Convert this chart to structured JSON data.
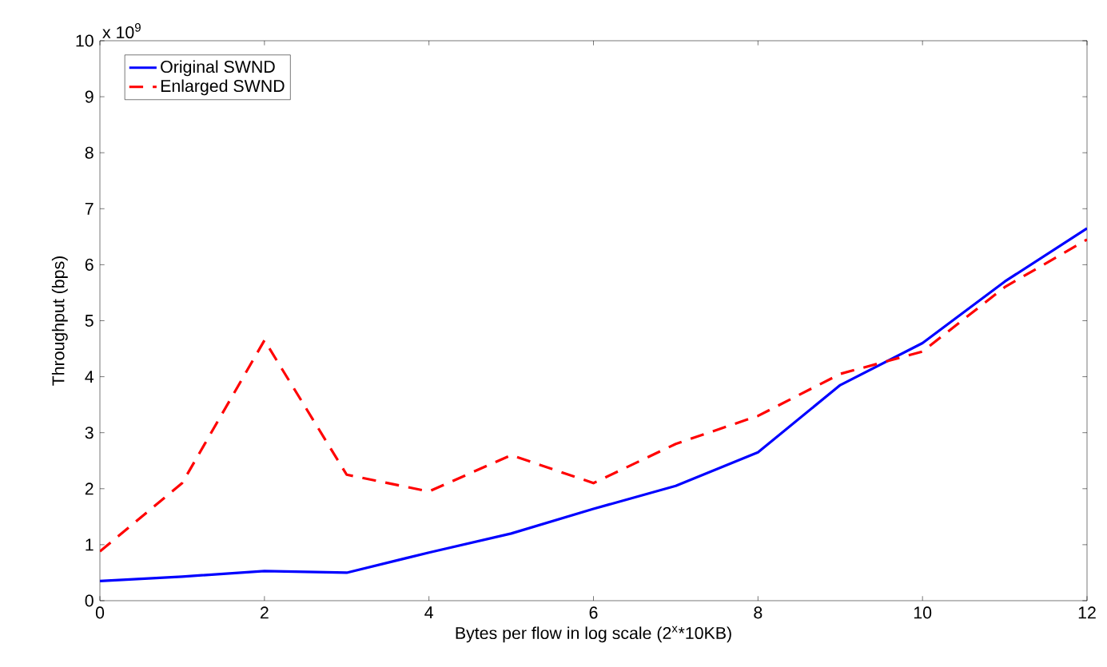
{
  "chart_data": {
    "type": "line",
    "xlabel": "Bytes per flow in log scale (2$^{x}$*10KB)",
    "ylabel": "Throughput (bps)",
    "annotations": [
      "x 10$^{9}$"
    ],
    "x": [
      0,
      1,
      2,
      3,
      4,
      5,
      6,
      7,
      8,
      9,
      10,
      11,
      12
    ],
    "series": [
      {
        "name": "Original SWND",
        "color": "#0000ff",
        "line_style": "solid",
        "values": [
          0.35,
          0.43,
          0.53,
          0.5,
          0.86,
          1.2,
          1.64,
          2.05,
          2.65,
          3.85,
          4.6,
          5.7,
          6.65
        ]
      },
      {
        "name": "Enlarged SWND",
        "color": "#ff0000",
        "line_style": "dashed",
        "values": [
          0.88,
          2.1,
          4.65,
          2.25,
          1.95,
          2.6,
          2.1,
          2.8,
          3.3,
          4.05,
          4.45,
          5.6,
          6.45
        ]
      }
    ],
    "xlim": [
      0,
      12
    ],
    "ylim": [
      0,
      10
    ],
    "xticks": [
      0,
      2,
      4,
      6,
      8,
      10,
      12
    ],
    "yticks": [
      0,
      1,
      2,
      3,
      4,
      5,
      6,
      7,
      8,
      9,
      10
    ],
    "grid": false,
    "legend": "top left",
    "marker": "none"
  }
}
